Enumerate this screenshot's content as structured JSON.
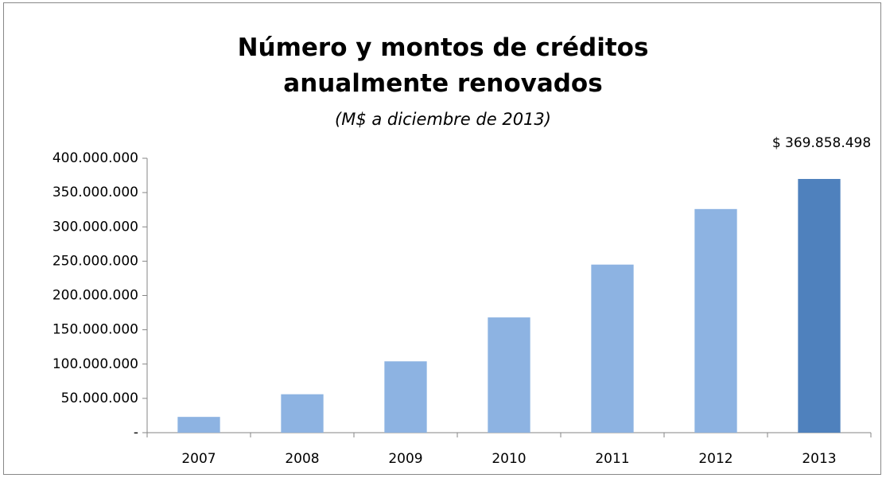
{
  "chart_data": {
    "type": "bar",
    "title": "Número y montos de créditos anualmente renovados",
    "subtitle": "(M$ a diciembre de 2013)",
    "categories": [
      "2007",
      "2008",
      "2009",
      "2010",
      "2011",
      "2012",
      "2013"
    ],
    "values": [
      23000000,
      56000000,
      104000000,
      168000000,
      245000000,
      326000000,
      369858498
    ],
    "value_labels": [
      null,
      null,
      null,
      null,
      null,
      null,
      "$ 369.858.498"
    ],
    "colors": [
      "#8db3e2",
      "#8db3e2",
      "#8db3e2",
      "#8db3e2",
      "#8db3e2",
      "#8db3e2",
      "#4f81bd"
    ],
    "ylim": [
      0,
      400000000
    ],
    "yticks": [
      {
        "value": 0,
        "label": "-"
      },
      {
        "value": 50000000,
        "label": "50.000.000"
      },
      {
        "value": 100000000,
        "label": "100.000.000"
      },
      {
        "value": 150000000,
        "label": "150.000.000"
      },
      {
        "value": 200000000,
        "label": "200.000.000"
      },
      {
        "value": 250000000,
        "label": "250.000.000"
      },
      {
        "value": 300000000,
        "label": "300.000.000"
      },
      {
        "value": 350000000,
        "label": "350.000.000"
      },
      {
        "value": 400000000,
        "label": "400.000.000"
      }
    ],
    "grid": false
  }
}
